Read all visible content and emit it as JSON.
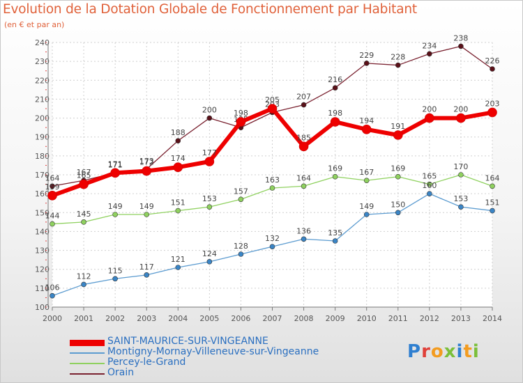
{
  "title": "Evolution de la Dotation Globale de Fonctionnement par Habitant",
  "subtitle": "(en € et par an)",
  "logo": "Proxiti",
  "chart_data": {
    "type": "line",
    "x": [
      "2000",
      "2001",
      "2002",
      "2003",
      "2004",
      "2005",
      "2006",
      "2007",
      "2008",
      "2009",
      "2010",
      "2011",
      "2012",
      "2013",
      "2014"
    ],
    "ylim": [
      100,
      240
    ],
    "yticks": [
      100,
      110,
      120,
      130,
      140,
      150,
      160,
      170,
      180,
      190,
      200,
      210,
      220,
      230,
      240
    ],
    "grid": true,
    "series": [
      {
        "name": "Orain",
        "color": "#7a2230",
        "width": 1.3,
        "values": [
          164,
          167,
          171,
          173,
          188,
          200,
          195,
          203,
          207,
          216,
          229,
          228,
          234,
          238,
          226
        ]
      },
      {
        "name": "Percey-le-Grand",
        "color": "#8fd15f",
        "width": 1.3,
        "values": [
          144,
          145,
          149,
          149,
          151,
          153,
          157,
          163,
          164,
          169,
          167,
          169,
          165,
          170,
          164
        ]
      },
      {
        "name": "Montigny-Mornay-Villeneuve-sur-Vingeanne",
        "color": "#5b9bd0",
        "width": 1.3,
        "values": [
          106,
          112,
          115,
          117,
          121,
          124,
          128,
          132,
          136,
          135,
          149,
          150,
          160,
          153,
          151
        ]
      },
      {
        "name": "SAINT-MAURICE-SUR-VINGEANNE",
        "color": "#ee0000",
        "width": 6,
        "values": [
          159,
          165,
          171,
          172,
          174,
          177,
          198,
          205,
          185,
          198,
          194,
          191,
          200,
          200,
          203
        ]
      }
    ],
    "legend_position": "bottom-left"
  }
}
